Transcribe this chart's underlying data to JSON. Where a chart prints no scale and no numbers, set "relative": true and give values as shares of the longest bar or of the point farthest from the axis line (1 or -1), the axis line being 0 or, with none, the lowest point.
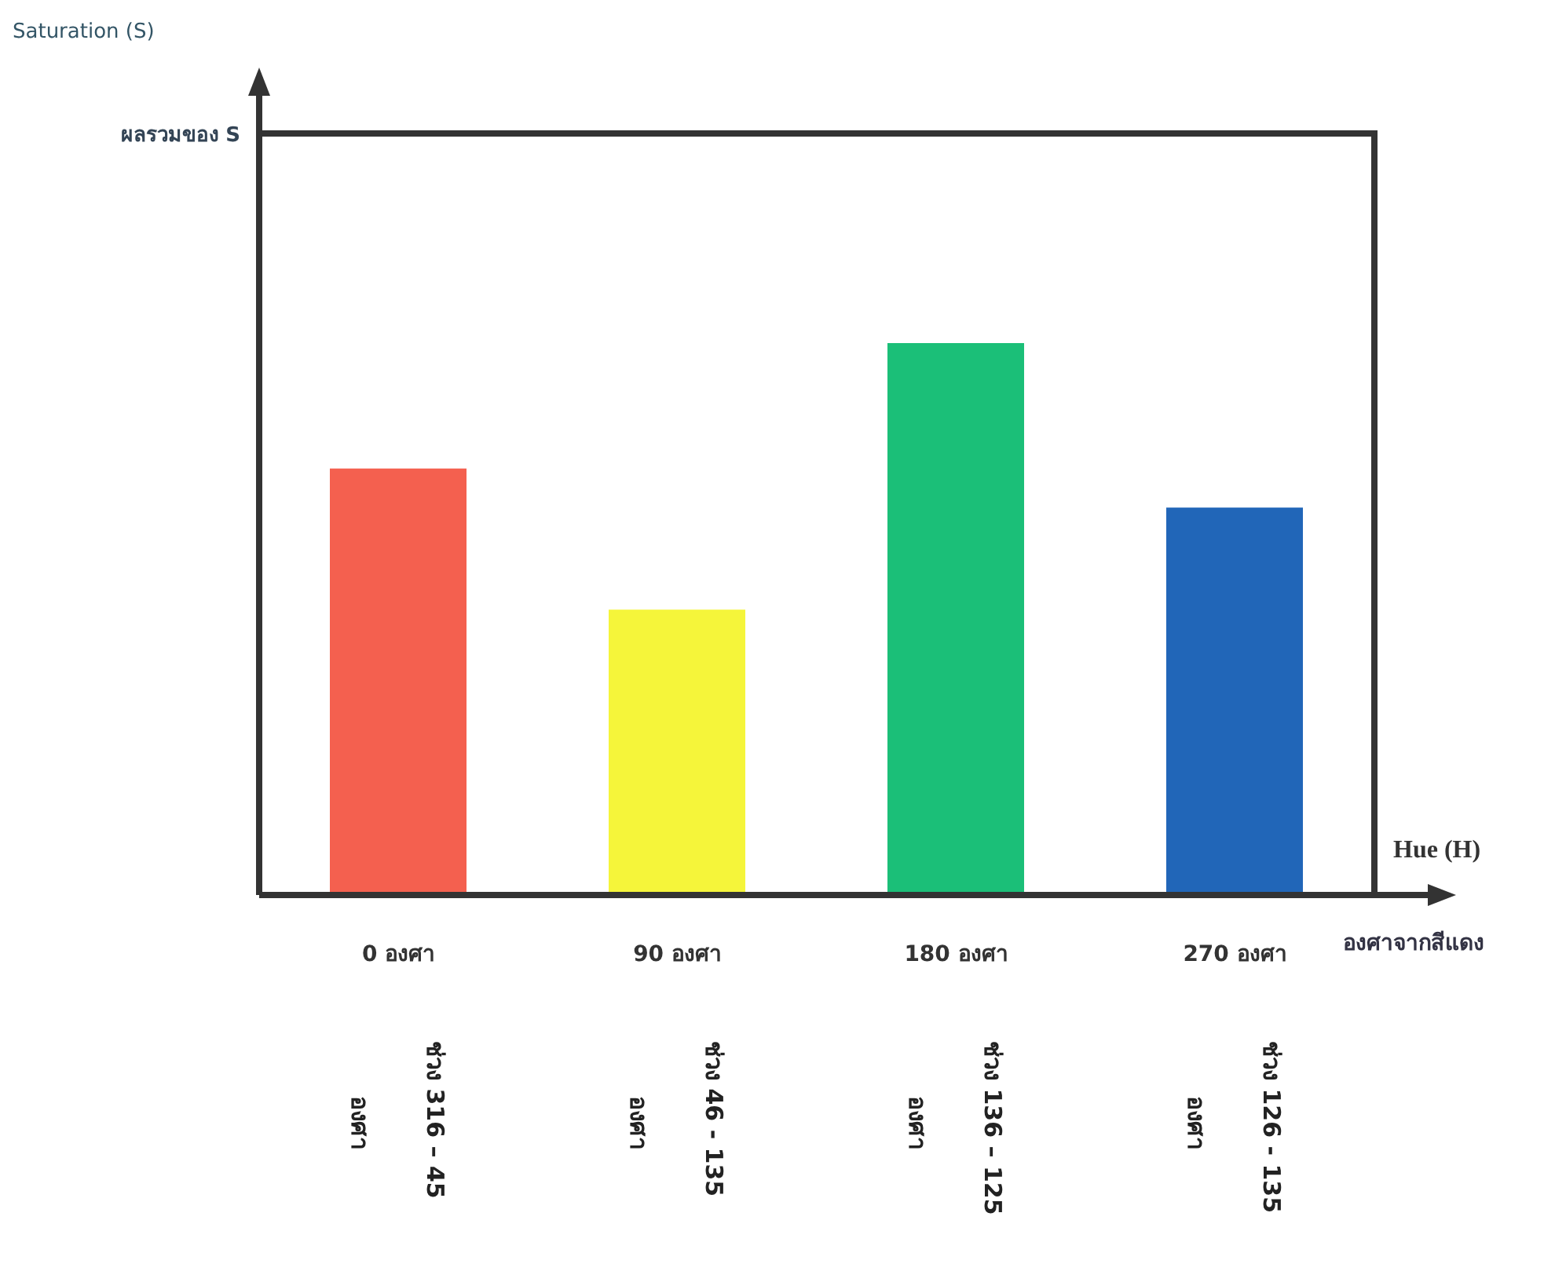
{
  "chart_data": {
    "type": "bar",
    "relative": true,
    "categories": [
      "0 องศา",
      "90 องศา",
      "180 องศา",
      "270 องศา"
    ],
    "values": [
      0.773,
      0.517,
      1,
      0.702
    ],
    "colors": [
      "#f4604f",
      "#f5f53a",
      "#1bbf78",
      "#2166b8"
    ],
    "annotations": [
      "Saturation (S)",
      "ผลรวมของ S",
      "Hue (H)",
      "องศาจากสีแดง",
      "ช่วง 316 – 45 องศา",
      "ช่วง 46 - 135 องศา",
      "ช่วง 136 – 125 องศา",
      "ช่วง 126 - 135 องศา"
    ]
  }
}
